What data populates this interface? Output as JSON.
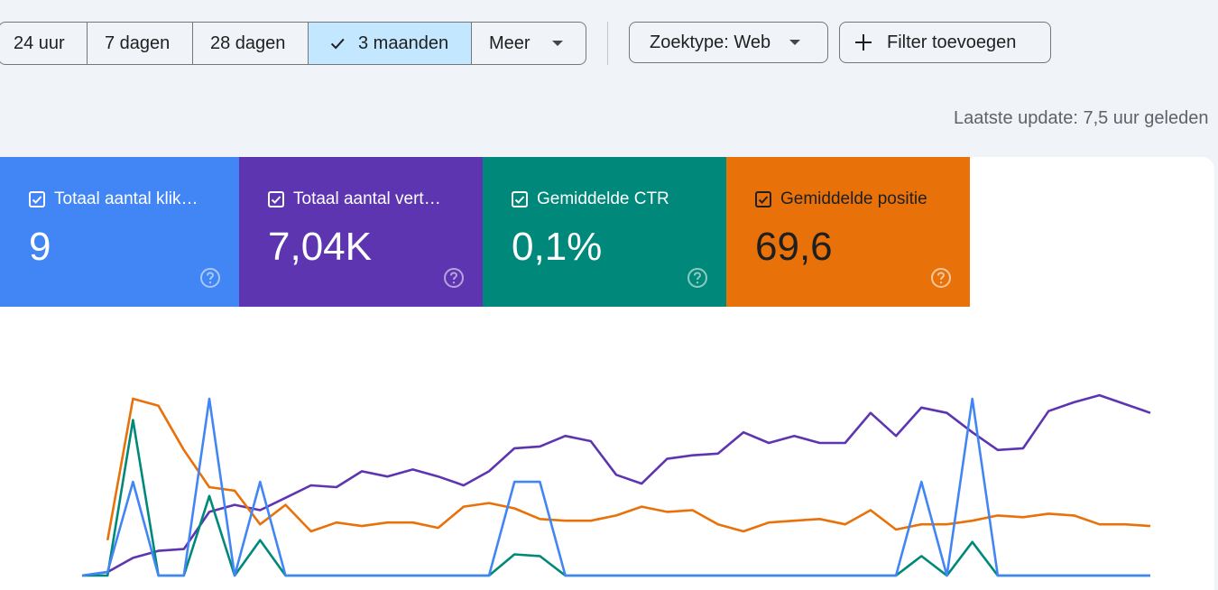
{
  "date_range": {
    "options": [
      {
        "label": "24 uur",
        "selected": false
      },
      {
        "label": "7 dagen",
        "selected": false
      },
      {
        "label": "28 dagen",
        "selected": false
      },
      {
        "label": "3 maanden",
        "selected": true
      }
    ],
    "more_label": "Meer"
  },
  "search_type": {
    "label": "Zoektype: Web"
  },
  "add_filter": {
    "label": "Filter toevoegen"
  },
  "last_update": "Laatste update: 7,5 uur geleden",
  "metrics": [
    {
      "label": "Totaal aantal klik…",
      "value": "9",
      "checked": true,
      "color": "#4285f4"
    },
    {
      "label": "Totaal aantal vert…",
      "value": "7,04K",
      "checked": true,
      "color": "#5e35b1"
    },
    {
      "label": "Gemiddelde CTR",
      "value": "0,1%",
      "checked": true,
      "color": "#00897b"
    },
    {
      "label": "Gemiddelde positie",
      "value": "69,6",
      "checked": true,
      "color": "#e8710a"
    }
  ],
  "chart_data": {
    "type": "line",
    "x": [
      1,
      2,
      3,
      4,
      5,
      6,
      7,
      8,
      9,
      10,
      11,
      12,
      13,
      14,
      15,
      16,
      17,
      18,
      19,
      20,
      21,
      22,
      23,
      24,
      25,
      26,
      27,
      28,
      29,
      30,
      31,
      32,
      33,
      34,
      35,
      36,
      37,
      38,
      39,
      40,
      41,
      42,
      43
    ],
    "series": [
      {
        "color": "#4285f4",
        "values": [
          0,
          0.02,
          0.53,
          0,
          0,
          1,
          0,
          0.53,
          0,
          0,
          0,
          0,
          0,
          0,
          0,
          0,
          0,
          0.53,
          0.53,
          0,
          0,
          0,
          0,
          0,
          0,
          0,
          0,
          0,
          0,
          0,
          0,
          0,
          0,
          0.53,
          0,
          1,
          0,
          0,
          0,
          0,
          0,
          0,
          0
        ]
      },
      {
        "color": "#5e35b1",
        "values": [
          0,
          0.02,
          0.1,
          0.14,
          0.15,
          0.36,
          0.4,
          0.37,
          0.44,
          0.51,
          0.5,
          0.59,
          0.56,
          0.6,
          0.56,
          0.51,
          0.59,
          0.72,
          0.73,
          0.79,
          0.76,
          0.57,
          0.52,
          0.66,
          0.68,
          0.69,
          0.81,
          0.75,
          0.79,
          0.75,
          0.75,
          0.92,
          0.79,
          0.95,
          0.92,
          0.81,
          0.71,
          0.72,
          0.93,
          0.98,
          1.02,
          0.97,
          0.92
        ]
      },
      {
        "color": "#00897b",
        "values": [
          0,
          0,
          0.88,
          0,
          0,
          0.45,
          0,
          0.2,
          0,
          0,
          0,
          0,
          0,
          0,
          0,
          0,
          0,
          0.12,
          0.11,
          0,
          0,
          0,
          0,
          0,
          0,
          0,
          0,
          0,
          0,
          0,
          0,
          0,
          0,
          0.11,
          0,
          0.19,
          0,
          0,
          0,
          0,
          0,
          0,
          0
        ]
      },
      {
        "color": "#e8710a",
        "values": [
          null,
          0.2,
          1.0,
          0.96,
          0.71,
          0.5,
          0.48,
          0.29,
          0.4,
          0.25,
          0.3,
          0.28,
          0.3,
          0.3,
          0.27,
          0.39,
          0.41,
          0.38,
          0.32,
          0.31,
          0.31,
          0.34,
          0.39,
          0.36,
          0.37,
          0.29,
          0.25,
          0.3,
          0.31,
          0.32,
          0.29,
          0.37,
          0.26,
          0.29,
          0.29,
          0.31,
          0.34,
          0.33,
          0.35,
          0.34,
          0.29,
          0.29,
          0.28
        ]
      }
    ]
  }
}
